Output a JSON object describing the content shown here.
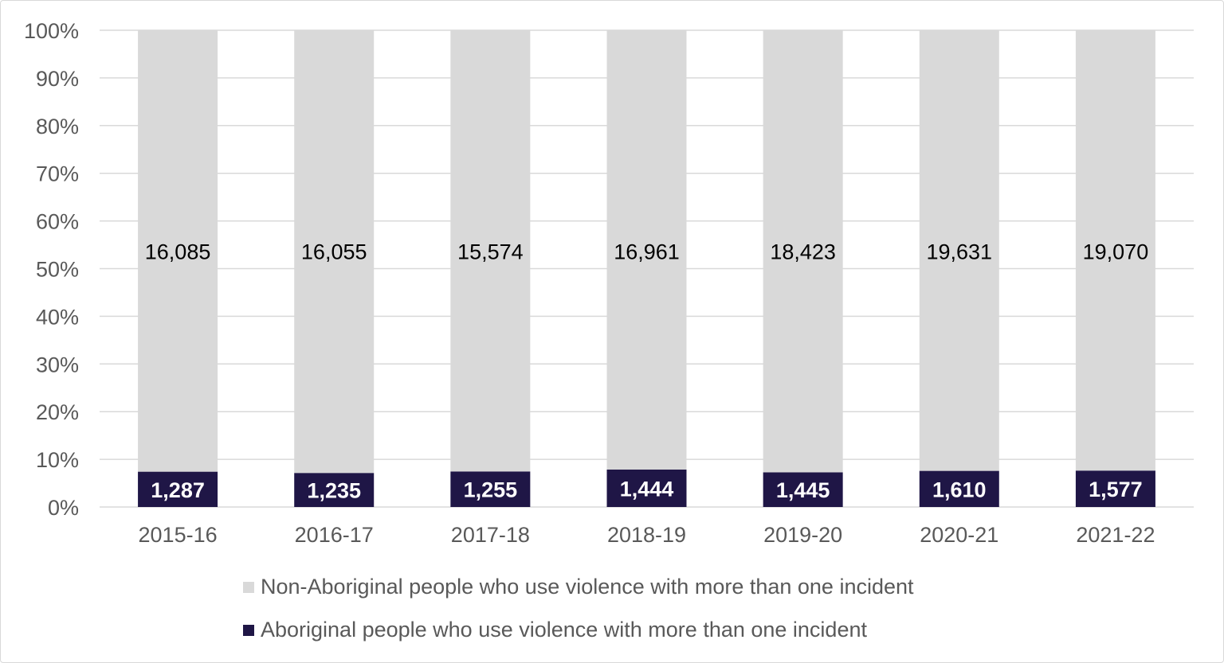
{
  "chart_data": {
    "type": "bar",
    "stacked": "percent",
    "categories": [
      "2015-16",
      "2016-17",
      "2017-18",
      "2018-19",
      "2019-20",
      "2020-21",
      "2021-22"
    ],
    "series": [
      {
        "name": "Aboriginal people who use violence with more than one incident",
        "values": [
          1287,
          1235,
          1255,
          1444,
          1445,
          1610,
          1577
        ],
        "color": "#1f1646",
        "labels": [
          "1,287",
          "1,235",
          "1,255",
          "1,444",
          "1,445",
          "1,610",
          "1,577"
        ]
      },
      {
        "name": "Non-Aboriginal people who use violence with more than one incident",
        "values": [
          16085,
          16055,
          15574,
          16961,
          18423,
          19631,
          19070
        ],
        "color": "#d9d9d9",
        "labels": [
          "16,085",
          "16,055",
          "15,574",
          "16,961",
          "18,423",
          "19,631",
          "19,070"
        ]
      }
    ],
    "yticks": [
      "0%",
      "10%",
      "20%",
      "30%",
      "40%",
      "50%",
      "60%",
      "70%",
      "80%",
      "90%",
      "100%"
    ],
    "ylim": [
      0,
      100
    ],
    "grid": true,
    "legend_placement": "bottom"
  }
}
